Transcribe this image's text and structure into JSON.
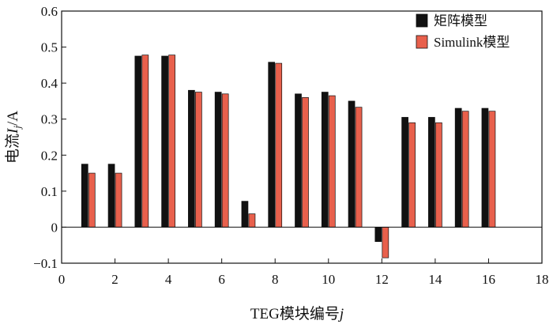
{
  "chart_data": {
    "type": "bar",
    "title": "",
    "xlabel": "TEG模块编号j",
    "ylabel": "电流I_j/A",
    "xlabel_parts": {
      "text": "TEG模块编号",
      "italic": "j"
    },
    "ylabel_parts": {
      "text": "电流",
      "italic_main": "I",
      "italic_sub": "j",
      "unit": "/A"
    },
    "xlim": [
      0,
      18
    ],
    "ylim": [
      -0.1,
      0.6
    ],
    "x_ticks": [
      0,
      2,
      4,
      6,
      8,
      10,
      12,
      14,
      16,
      18
    ],
    "x_tick_labels": [
      "0",
      "2",
      "4",
      "6",
      "8",
      "10",
      "12",
      "14",
      "16",
      "18"
    ],
    "y_ticks": [
      -0.1,
      0,
      0.1,
      0.2,
      0.3,
      0.4,
      0.5,
      0.6
    ],
    "y_tick_labels": [
      "−0.1",
      "0",
      "0.1",
      "0.2",
      "0.3",
      "0.4",
      "0.5",
      "0.6"
    ],
    "grid": false,
    "legend_position": "top-right",
    "categories": [
      1,
      2,
      3,
      4,
      5,
      6,
      7,
      8,
      9,
      10,
      11,
      12,
      13,
      14,
      15,
      16
    ],
    "series": [
      {
        "name": "矩阵模型",
        "color": "#111111",
        "values": [
          0.175,
          0.175,
          0.475,
          0.475,
          0.38,
          0.375,
          0.072,
          0.458,
          0.37,
          0.375,
          0.35,
          -0.04,
          0.305,
          0.305,
          0.33,
          0.33
        ]
      },
      {
        "name": "Simulink模型",
        "color": "#e8604c",
        "values": [
          0.15,
          0.15,
          0.478,
          0.478,
          0.375,
          0.37,
          0.037,
          0.455,
          0.36,
          0.365,
          0.333,
          -0.085,
          0.29,
          0.29,
          0.322,
          0.322
        ]
      }
    ]
  }
}
